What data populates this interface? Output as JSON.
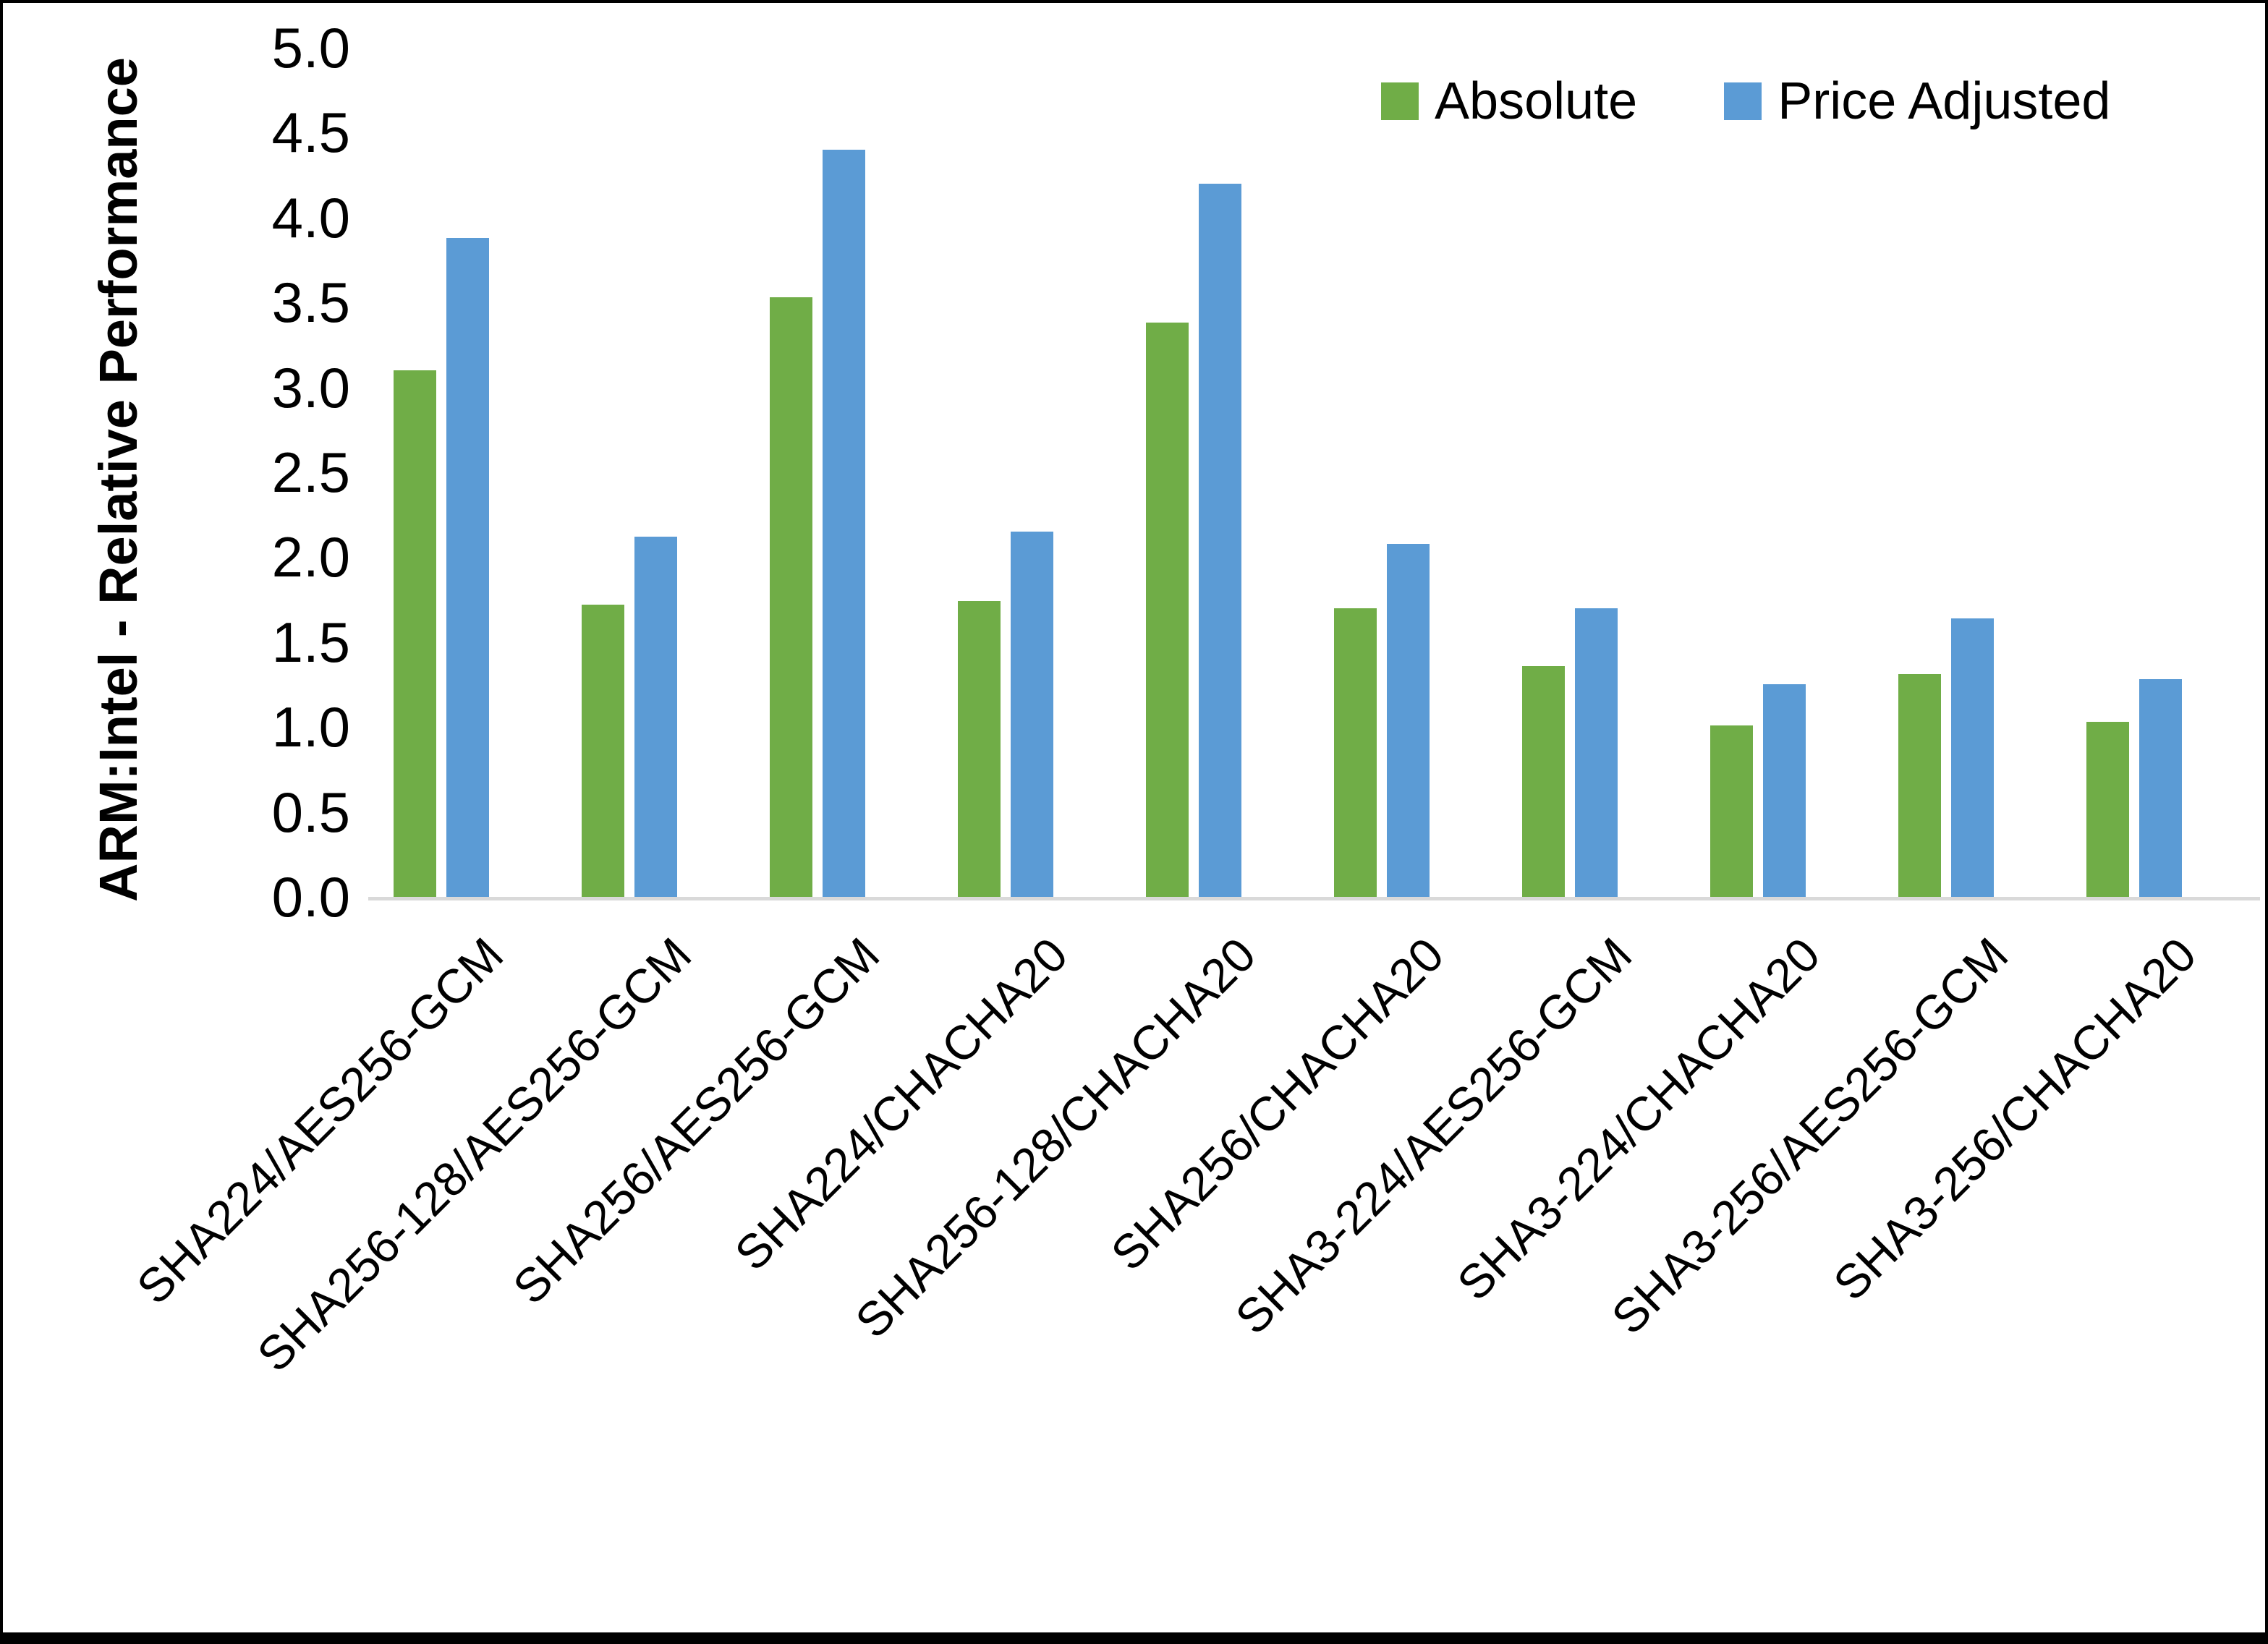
{
  "figure": {
    "y_axis_title": "ARM:Intel - Relative Performance"
  },
  "legend": {
    "items": [
      {
        "label": "Absolute",
        "color": "#70AD47"
      },
      {
        "label": "Price Adjusted",
        "color": "#5B9BD5"
      }
    ]
  },
  "chart_data": {
    "type": "bar",
    "title": "",
    "xlabel": "",
    "ylabel": "ARM:Intel - Relative Performance",
    "ylim": [
      0.0,
      5.0
    ],
    "ytick_step": 0.5,
    "ytick_decimals": 1,
    "grid": false,
    "legend_position": "top-right-inside",
    "axis_line_color": "#D9D9D9",
    "text_color": "#000000",
    "categories": [
      "SHA224/AES256-GCM",
      "SHA256-128/AES256-GCM",
      "SHA256/AES256-GCM",
      "SHA224/CHACHA20",
      "SHA256-128/CHACHA20",
      "SHA256/CHACHA20",
      "SHA3-224/AES256-GCM",
      "SHA3-224/CHACHA20",
      "SHA3-256/AES256-GCM",
      "SHA3-256/CHACHA20"
    ],
    "series": [
      {
        "name": "Absolute",
        "color": "#70AD47",
        "values": [
          3.1,
          1.72,
          3.53,
          1.74,
          3.38,
          1.7,
          1.36,
          1.01,
          1.31,
          1.03
        ]
      },
      {
        "name": "Price Adjusted",
        "color": "#5B9BD5",
        "values": [
          3.88,
          2.12,
          4.4,
          2.15,
          4.2,
          2.08,
          1.7,
          1.25,
          1.64,
          1.28
        ]
      }
    ]
  }
}
